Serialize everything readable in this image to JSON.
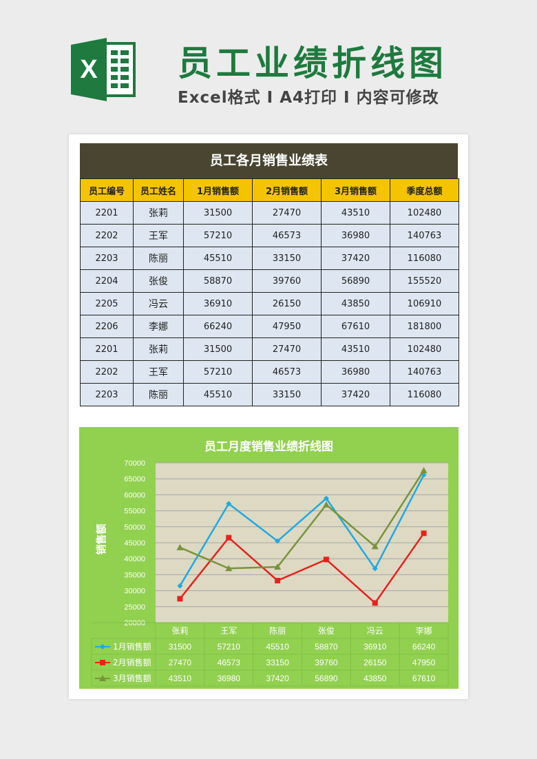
{
  "header": {
    "title": "员工业绩折线图",
    "subtitle": "Excel格式 Ⅰ A4打印 Ⅰ 内容可修改",
    "logo_letter": "X",
    "logo_icon": "excel-logo-icon"
  },
  "table": {
    "title": "员工各月销售业绩表",
    "columns": [
      "员工编号",
      "员工姓名",
      "1月销售额",
      "2月销售额",
      "3月销售额",
      "季度总额"
    ],
    "rows": [
      [
        "2201",
        "张莉",
        "31500",
        "27470",
        "43510",
        "102480"
      ],
      [
        "2202",
        "王军",
        "57210",
        "46573",
        "36980",
        "140763"
      ],
      [
        "2203",
        "陈丽",
        "45510",
        "33150",
        "37420",
        "116080"
      ],
      [
        "2204",
        "张俊",
        "58870",
        "39760",
        "56890",
        "155520"
      ],
      [
        "2205",
        "冯云",
        "36910",
        "26150",
        "43850",
        "106910"
      ],
      [
        "2206",
        "李娜",
        "66240",
        "47950",
        "67610",
        "181800"
      ],
      [
        "2201",
        "张莉",
        "31500",
        "27470",
        "43510",
        "102480"
      ],
      [
        "2202",
        "王军",
        "57210",
        "46573",
        "36980",
        "140763"
      ],
      [
        "2203",
        "陈丽",
        "45510",
        "33150",
        "37420",
        "116080"
      ]
    ],
    "colors": {
      "header_bg": "#4a4530",
      "column_bg": "#f5c400",
      "cell_bg": "#dde6f1"
    }
  },
  "chart_data": {
    "type": "line",
    "title": "员工月度销售业绩折线图",
    "ylabel": "销售额",
    "xlabel": "",
    "ylim": [
      20000,
      70000
    ],
    "yticks": [
      20000,
      25000,
      30000,
      35000,
      40000,
      45000,
      50000,
      55000,
      60000,
      65000,
      70000
    ],
    "categories": [
      "张莉",
      "王军",
      "陈丽",
      "张俊",
      "冯云",
      "李娜"
    ],
    "grid": true,
    "legend": "bottom-data-table",
    "series": [
      {
        "name": "1月销售额",
        "values": [
          31500,
          57210,
          45510,
          58870,
          36910,
          66240
        ],
        "color": "#1fa9e1",
        "marker": "diamond"
      },
      {
        "name": "2月销售额",
        "values": [
          27470,
          46573,
          33150,
          39760,
          26150,
          47950
        ],
        "color": "#e8211d",
        "marker": "square"
      },
      {
        "name": "3月销售额",
        "values": [
          43510,
          36980,
          37420,
          56890,
          43850,
          67610
        ],
        "color": "#77933c",
        "marker": "triangle"
      }
    ],
    "colors": {
      "background": "#92d050",
      "plot_area": "#ddd9c3"
    }
  }
}
